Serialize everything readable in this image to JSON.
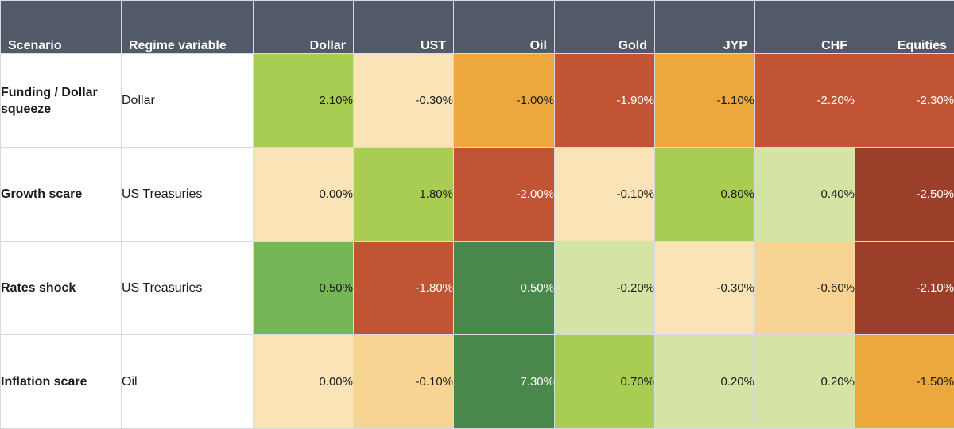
{
  "chart_data": {
    "type": "heatmap",
    "columns": [
      "Scenario",
      "Regime variable",
      "Dollar",
      "UST",
      "Oil",
      "Gold",
      "JYP",
      "CHF",
      "Equities"
    ],
    "rows": [
      {
        "scenario": "Funding / Dollar squeeze",
        "regime": "Dollar",
        "values": [
          2.1,
          -0.3,
          -1.0,
          -1.9,
          -1.1,
          -2.2,
          -2.3
        ],
        "labels": [
          "2.10%",
          "-0.30%",
          "-1.00%",
          "-1.90%",
          "-1.10%",
          "-2.20%",
          "-2.30%"
        ]
      },
      {
        "scenario": "Growth scare",
        "regime": "US Treasuries",
        "values": [
          0.0,
          1.8,
          -2.0,
          -0.1,
          0.8,
          0.4,
          -2.5
        ],
        "labels": [
          "0.00%",
          "1.80%",
          "-2.00%",
          "-0.10%",
          "0.80%",
          "0.40%",
          "-2.50%"
        ]
      },
      {
        "scenario": "Rates shock",
        "regime": "US Treasuries",
        "values": [
          0.5,
          -1.8,
          0.5,
          -0.2,
          -0.3,
          -0.6,
          -2.1
        ],
        "labels": [
          "0.50%",
          "-1.80%",
          "0.50%",
          "-0.20%",
          "-0.30%",
          "-0.60%",
          "-2.10%"
        ]
      },
      {
        "scenario": "Inflation scare",
        "regime": "Oil",
        "values": [
          0.0,
          -0.1,
          7.3,
          0.7,
          0.2,
          0.2,
          -1.5
        ],
        "labels": [
          "0.00%",
          "-0.10%",
          "7.30%",
          "0.70%",
          "0.20%",
          "0.20%",
          "-1.50%"
        ]
      }
    ],
    "cell_colors": [
      [
        "#a9cc52",
        "#fbe3b8",
        "#eca83d",
        "#c25436",
        "#eca83d",
        "#c25436",
        "#c25436"
      ],
      [
        "#fbe3b8",
        "#a9cc52",
        "#c25436",
        "#fbe3b8",
        "#a9cc52",
        "#d4e4a4",
        "#9b3f2b"
      ],
      [
        "#75b657",
        "#c25436",
        "#4a874a",
        "#d4e4a4",
        "#fbe3b8",
        "#f7d493",
        "#9b3f2b"
      ],
      [
        "#fbe3b8",
        "#f7d493",
        "#4a874a",
        "#a9cc52",
        "#d4e4a4",
        "#d4e4a4",
        "#eca83d"
      ]
    ],
    "light_text_colors": [
      "#4a874a",
      "#c25436",
      "#9b3f2b"
    ]
  },
  "header_bg": "#525a6a"
}
